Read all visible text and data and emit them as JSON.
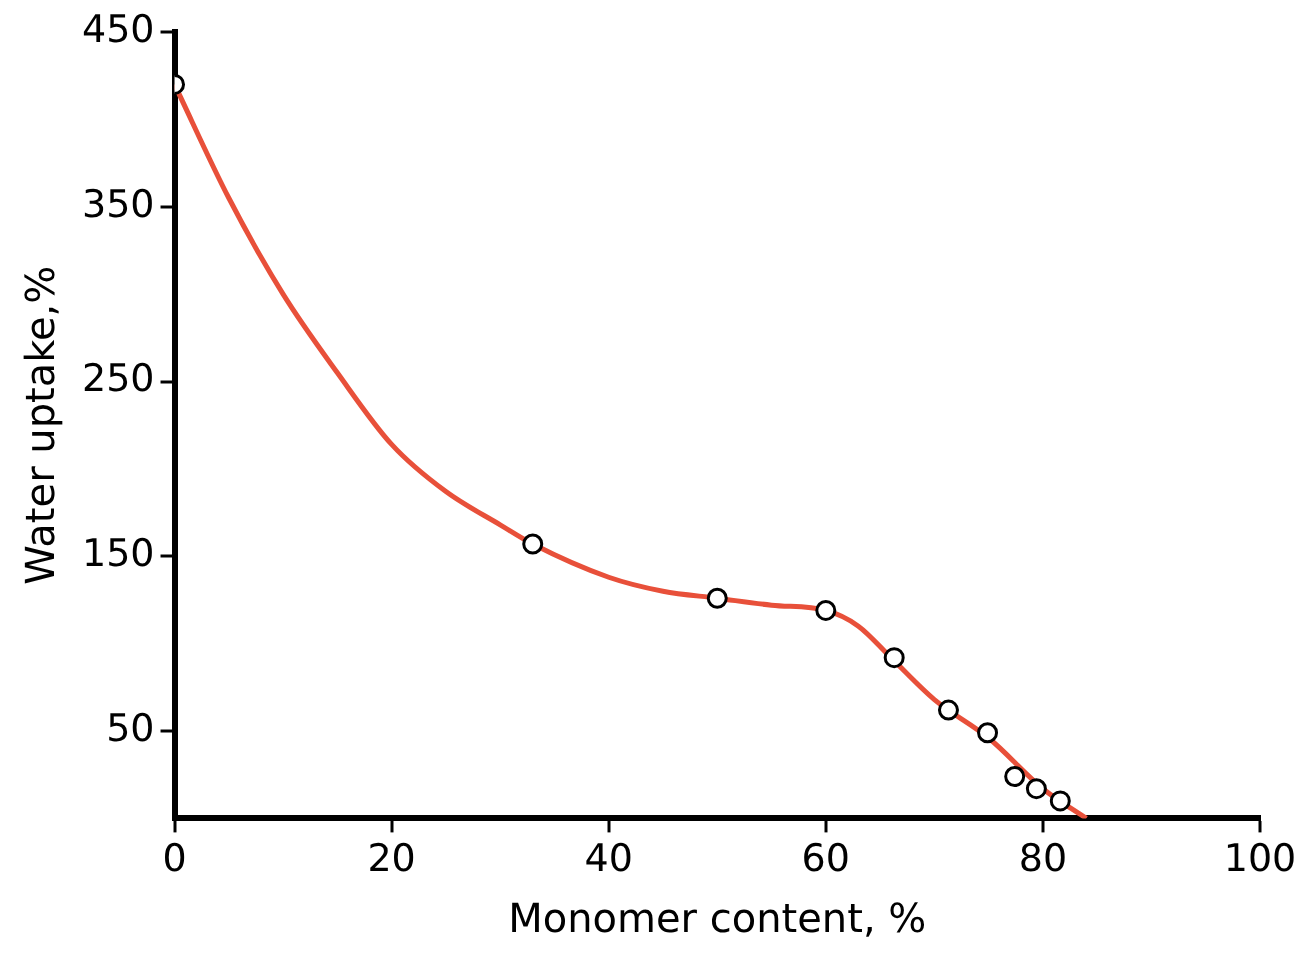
{
  "chart_data": {
    "type": "scatter",
    "xlabel": "Monomer content, %",
    "ylabel": "Water uptake,%",
    "xlim": [
      0,
      100
    ],
    "ylim": [
      0,
      450
    ],
    "xticks": [
      0,
      20,
      40,
      60,
      80,
      100
    ],
    "yticks": [
      50,
      150,
      250,
      350,
      450
    ],
    "grid": false,
    "legend": false,
    "marker": "circle",
    "series": [
      {
        "type": "line",
        "color": "#e8503a",
        "marker": "none",
        "x": [
          0,
          5,
          10,
          15,
          20,
          25,
          30,
          33,
          40,
          45,
          50,
          55,
          60,
          63,
          66,
          70,
          75,
          80,
          84
        ],
        "values": [
          420,
          355,
          300,
          255,
          214,
          187,
          168,
          157,
          138,
          130,
          126,
          122,
          119,
          110,
          92,
          68,
          46,
          17,
          0
        ]
      },
      {
        "color": "#000000",
        "x": [
          0,
          33,
          50,
          60,
          66.3,
          71.3,
          74.9,
          77.4,
          79.4,
          81.6
        ],
        "values": [
          420,
          157,
          126,
          119,
          92,
          62,
          49,
          24,
          17,
          10
        ]
      }
    ]
  }
}
